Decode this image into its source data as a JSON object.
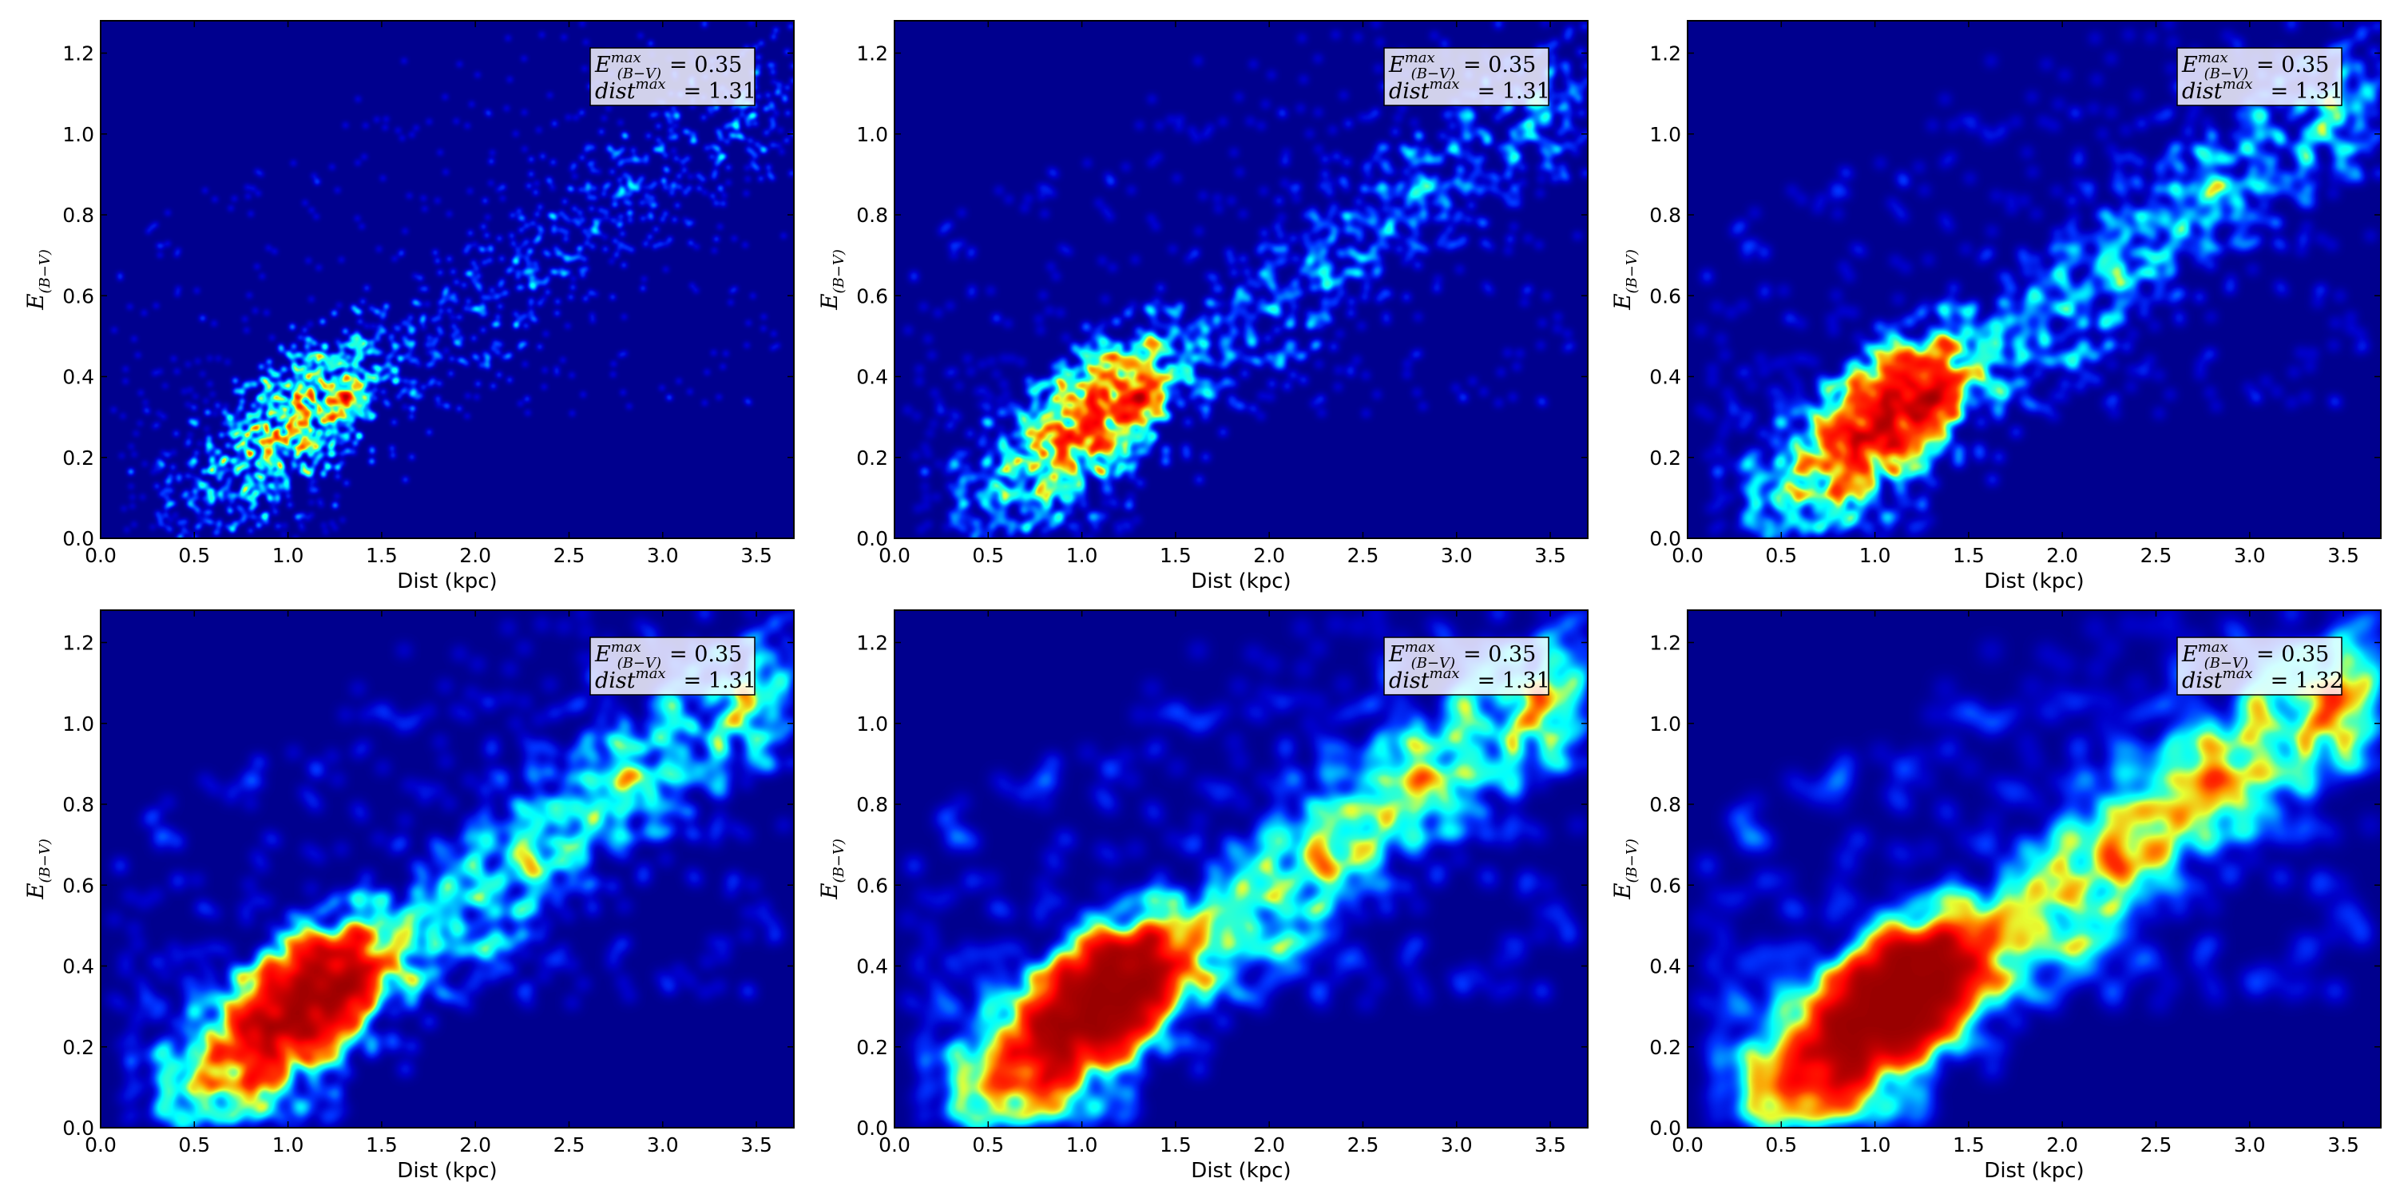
{
  "chart_data": [
    {
      "type": "heatmap",
      "xlabel": "Dist (kpc)",
      "ylabel": "E(B−V)",
      "xlim": [
        0.0,
        3.7
      ],
      "ylim": [
        0.0,
        1.28
      ],
      "xticks": [
        "0.0",
        "0.5",
        "1.0",
        "1.5",
        "2.0",
        "2.5",
        "3.0",
        "3.5"
      ],
      "yticks": [
        "0.0",
        "0.2",
        "0.4",
        "0.6",
        "0.8",
        "1.0",
        "1.2"
      ],
      "colormap": "jet",
      "smoothing": 1,
      "peak": {
        "x": 1.31,
        "y": 0.35
      },
      "annotation": {
        "e_label": "E",
        "e_sup": "max",
        "e_sub": "(B−V)",
        "e_value": "= 0.35",
        "d_label": "dist",
        "d_sup": "max",
        "d_value": "= 1.31"
      }
    },
    {
      "type": "heatmap",
      "xlabel": "Dist (kpc)",
      "ylabel": "E(B−V)",
      "xlim": [
        0.0,
        3.7
      ],
      "ylim": [
        0.0,
        1.28
      ],
      "xticks": [
        "0.0",
        "0.5",
        "1.0",
        "1.5",
        "2.0",
        "2.5",
        "3.0",
        "3.5"
      ],
      "yticks": [
        "0.0",
        "0.2",
        "0.4",
        "0.6",
        "0.8",
        "1.0",
        "1.2"
      ],
      "colormap": "jet",
      "smoothing": 2,
      "peak": {
        "x": 1.31,
        "y": 0.35
      },
      "annotation": {
        "e_label": "E",
        "e_sup": "max",
        "e_sub": "(B−V)",
        "e_value": "= 0.35",
        "d_label": "dist",
        "d_sup": "max",
        "d_value": "= 1.31"
      }
    },
    {
      "type": "heatmap",
      "xlabel": "Dist (kpc)",
      "ylabel": "E(B−V)",
      "xlim": [
        0.0,
        3.7
      ],
      "ylim": [
        0.0,
        1.28
      ],
      "xticks": [
        "0.0",
        "0.5",
        "1.0",
        "1.5",
        "2.0",
        "2.5",
        "3.0",
        "3.5"
      ],
      "yticks": [
        "0.0",
        "0.2",
        "0.4",
        "0.6",
        "0.8",
        "1.0",
        "1.2"
      ],
      "colormap": "jet",
      "smoothing": 3,
      "peak": {
        "x": 1.31,
        "y": 0.35
      },
      "annotation": {
        "e_label": "E",
        "e_sup": "max",
        "e_sub": "(B−V)",
        "e_value": "= 0.35",
        "d_label": "dist",
        "d_sup": "max",
        "d_value": "= 1.31"
      }
    },
    {
      "type": "heatmap",
      "xlabel": "Dist (kpc)",
      "ylabel": "E(B−V)",
      "xlim": [
        0.0,
        3.7
      ],
      "ylim": [
        0.0,
        1.28
      ],
      "xticks": [
        "0.0",
        "0.5",
        "1.0",
        "1.5",
        "2.0",
        "2.5",
        "3.0",
        "3.5"
      ],
      "yticks": [
        "0.0",
        "0.2",
        "0.4",
        "0.6",
        "0.8",
        "1.0",
        "1.2"
      ],
      "colormap": "jet",
      "smoothing": 4,
      "peak": {
        "x": 1.31,
        "y": 0.35
      },
      "annotation": {
        "e_label": "E",
        "e_sup": "max",
        "e_sub": "(B−V)",
        "e_value": "= 0.35",
        "d_label": "dist",
        "d_sup": "max",
        "d_value": "= 1.31"
      }
    },
    {
      "type": "heatmap",
      "xlabel": "Dist (kpc)",
      "ylabel": "E(B−V)",
      "xlim": [
        0.0,
        3.7
      ],
      "ylim": [
        0.0,
        1.28
      ],
      "xticks": [
        "0.0",
        "0.5",
        "1.0",
        "1.5",
        "2.0",
        "2.5",
        "3.0",
        "3.5"
      ],
      "yticks": [
        "0.0",
        "0.2",
        "0.4",
        "0.6",
        "0.8",
        "1.0",
        "1.2"
      ],
      "colormap": "jet",
      "smoothing": 5,
      "peak": {
        "x": 1.31,
        "y": 0.35
      },
      "annotation": {
        "e_label": "E",
        "e_sup": "max",
        "e_sub": "(B−V)",
        "e_value": "= 0.35",
        "d_label": "dist",
        "d_sup": "max",
        "d_value": "= 1.31"
      }
    },
    {
      "type": "heatmap",
      "xlabel": "Dist (kpc)",
      "ylabel": "E(B−V)",
      "xlim": [
        0.0,
        3.7
      ],
      "ylim": [
        0.0,
        1.28
      ],
      "xticks": [
        "0.0",
        "0.5",
        "1.0",
        "1.5",
        "2.0",
        "2.5",
        "3.0",
        "3.5"
      ],
      "yticks": [
        "0.0",
        "0.2",
        "0.4",
        "0.6",
        "0.8",
        "1.0",
        "1.2"
      ],
      "colormap": "jet",
      "smoothing": 6,
      "peak": {
        "x": 1.32,
        "y": 0.35
      },
      "annotation": {
        "e_label": "E",
        "e_sup": "max",
        "e_sub": "(B−V)",
        "e_value": "= 0.35",
        "d_label": "dist",
        "d_sup": "max",
        "d_value": "= 1.32"
      }
    }
  ],
  "colors": {
    "background": "#00008f",
    "axes_frame": "#000000"
  }
}
